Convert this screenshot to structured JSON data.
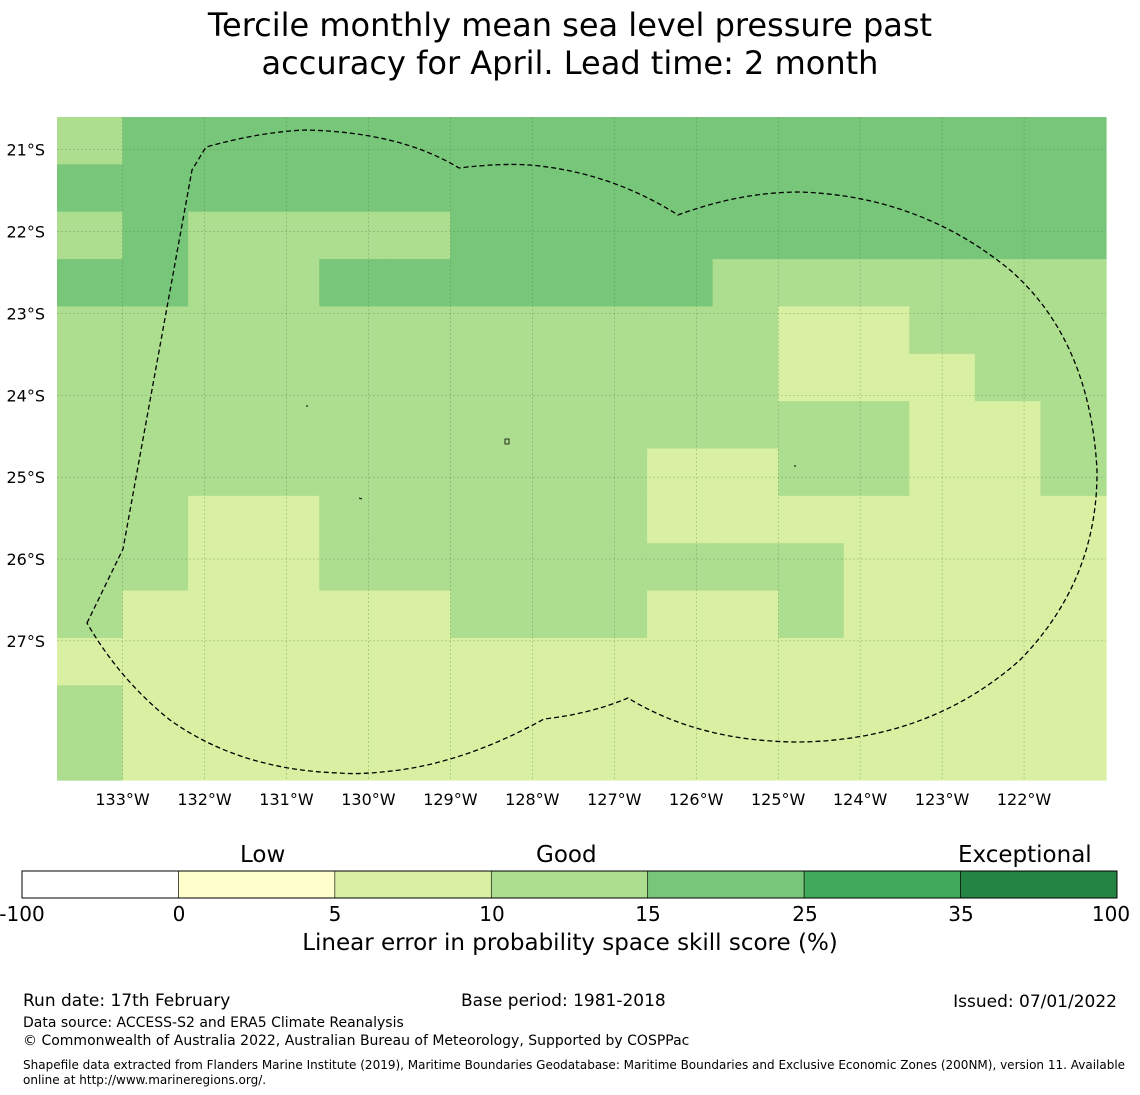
{
  "title": {
    "line1": "Tercile monthly mean sea level pressure past",
    "line2": "accuracy for April. Lead time: 2 month"
  },
  "map": {
    "lat_labels": [
      "21°S",
      "22°S",
      "23°S",
      "24°S",
      "25°S",
      "26°S",
      "27°S"
    ],
    "lat_values": [
      -21,
      -22,
      -23,
      -24,
      -25,
      -26,
      -27
    ],
    "lon_labels": [
      "133°W",
      "132°W",
      "131°W",
      "130°W",
      "129°W",
      "128°W",
      "127°W",
      "126°W",
      "125°W",
      "124°W",
      "123°W",
      "122°W"
    ],
    "lon_values": [
      -133,
      -132,
      -131,
      -130,
      -129,
      -128,
      -127,
      -126,
      -125,
      -124,
      -123,
      -122
    ],
    "lon_range": [
      -133.8,
      -121.0
    ],
    "lat_range": [
      -20.6,
      -28.7
    ],
    "grid_step_deg": 0.833,
    "grid_cols": 16,
    "grid_rows": 14,
    "score_grid": [
      [
        3,
        4,
        4,
        4,
        4,
        4,
        4,
        4,
        4,
        4,
        4,
        4,
        4,
        4,
        4,
        4
      ],
      [
        4,
        4,
        4,
        4,
        4,
        4,
        4,
        4,
        4,
        4,
        4,
        4,
        4,
        4,
        4,
        4
      ],
      [
        3,
        4,
        3,
        3,
        3,
        3,
        4,
        4,
        4,
        4,
        4,
        4,
        4,
        4,
        4,
        4
      ],
      [
        4,
        4,
        3,
        3,
        4,
        4,
        4,
        4,
        4,
        4,
        3,
        3,
        3,
        3,
        3,
        3
      ],
      [
        3,
        3,
        3,
        3,
        3,
        3,
        3,
        3,
        3,
        3,
        3,
        3,
        3,
        3,
        3,
        3
      ],
      [
        3,
        3,
        3,
        3,
        3,
        3,
        3,
        3,
        3,
        3,
        3,
        3,
        3,
        3,
        3,
        3
      ],
      [
        3,
        3,
        3,
        3,
        3,
        3,
        3,
        3,
        3,
        3,
        3,
        3,
        3,
        3,
        3,
        3
      ],
      [
        3,
        3,
        3,
        3,
        3,
        3,
        3,
        3,
        3,
        3,
        3,
        3,
        3,
        3,
        3,
        3
      ],
      [
        3,
        3,
        2,
        2,
        3,
        3,
        3,
        3,
        3,
        3,
        3,
        3,
        3,
        3,
        3,
        3
      ],
      [
        3,
        3,
        2,
        2,
        3,
        3,
        3,
        3,
        3,
        3,
        3,
        3,
        3,
        3,
        3,
        3
      ],
      [
        3,
        2,
        2,
        2,
        2,
        2,
        3,
        3,
        3,
        3,
        3,
        3,
        3,
        3,
        3,
        3
      ],
      [
        2,
        2,
        2,
        2,
        2,
        2,
        3,
        3,
        3,
        3,
        3,
        3,
        3,
        3,
        3,
        3
      ],
      [
        3,
        2,
        2,
        2,
        2,
        2,
        2,
        2,
        2,
        2,
        2,
        2,
        2,
        2,
        2,
        2
      ],
      [
        3,
        2,
        2,
        2,
        2,
        2,
        2,
        2,
        2,
        2,
        2,
        2,
        2,
        2,
        2,
        2
      ]
    ],
    "score_overrides": [
      {
        "row": 0,
        "col": 0,
        "level": 3
      },
      {
        "row": 4,
        "col": 11,
        "level": 2
      },
      {
        "row": 4,
        "col": 12,
        "level": 2
      },
      {
        "row": 5,
        "col": 11,
        "level": 2
      },
      {
        "row": 5,
        "col": 12,
        "level": 2
      },
      {
        "row": 5,
        "col": 13,
        "level": 2
      },
      {
        "row": 6,
        "col": 13,
        "level": 2
      },
      {
        "row": 6,
        "col": 14,
        "level": 2
      },
      {
        "row": 7,
        "col": 9,
        "level": 2
      },
      {
        "row": 7,
        "col": 10,
        "level": 2
      },
      {
        "row": 7,
        "col": 13,
        "level": 2
      },
      {
        "row": 7,
        "col": 14,
        "level": 2
      },
      {
        "row": 8,
        "col": 9,
        "level": 2
      },
      {
        "row": 8,
        "col": 10,
        "level": 2
      },
      {
        "row": 8,
        "col": 15,
        "level": 2
      },
      {
        "row": 8,
        "col": 14,
        "level": 2
      },
      {
        "row": 8,
        "col": 13,
        "level": 2
      },
      {
        "row": 8,
        "col": 12,
        "level": 2
      },
      {
        "row": 8,
        "col": 11,
        "level": 2
      },
      {
        "row": 9,
        "col": 5,
        "level": 3
      },
      {
        "row": 9,
        "col": 6,
        "level": 3
      },
      {
        "row": 9,
        "col": 7,
        "level": 3
      },
      {
        "row": 9,
        "col": 8,
        "level": 3
      },
      {
        "row": 9,
        "col": 9,
        "level": 3
      },
      {
        "row": 9,
        "col": 10,
        "level": 3
      },
      {
        "row": 9,
        "col": 11,
        "level": 3
      },
      {
        "row": 9,
        "col": 12,
        "level": 2
      },
      {
        "row": 9,
        "col": 13,
        "level": 2
      },
      {
        "row": 9,
        "col": 14,
        "level": 2
      },
      {
        "row": 9,
        "col": 15,
        "level": 2
      },
      {
        "row": 10,
        "col": 6,
        "level": 3
      },
      {
        "row": 10,
        "col": 7,
        "level": 3
      },
      {
        "row": 10,
        "col": 8,
        "level": 3
      },
      {
        "row": 10,
        "col": 9,
        "level": 2
      },
      {
        "row": 10,
        "col": 10,
        "level": 2
      },
      {
        "row": 10,
        "col": 11,
        "level": 3
      },
      {
        "row": 10,
        "col": 12,
        "level": 2
      },
      {
        "row": 10,
        "col": 13,
        "level": 2
      },
      {
        "row": 10,
        "col": 14,
        "level": 2
      },
      {
        "row": 10,
        "col": 15,
        "level": 2
      },
      {
        "row": 11,
        "col": 6,
        "level": 2
      },
      {
        "row": 11,
        "col": 7,
        "level": 2
      },
      {
        "row": 11,
        "col": 8,
        "level": 2
      },
      {
        "row": 11,
        "col": 9,
        "level": 2
      },
      {
        "row": 11,
        "col": 10,
        "level": 2
      },
      {
        "row": 11,
        "col": 11,
        "level": 2
      },
      {
        "row": 11,
        "col": 12,
        "level": 2
      },
      {
        "row": 11,
        "col": 13,
        "level": 2
      },
      {
        "row": 11,
        "col": 14,
        "level": 2
      },
      {
        "row": 11,
        "col": 15,
        "level": 2
      }
    ],
    "colors": [
      "#ffffff",
      "#ffffcc",
      "#d9f0a3",
      "#addd8e",
      "#78c679",
      "#41ab5d",
      "#238443"
    ]
  },
  "colorbar": {
    "category_labels": [
      "Low",
      "Good",
      "Exceptional"
    ],
    "ticks": [
      "-100",
      "0",
      "5",
      "10",
      "15",
      "25",
      "35",
      "100"
    ],
    "colors": [
      "#ffffff",
      "#ffffcc",
      "#d9f0a3",
      "#addd8e",
      "#78c679",
      "#41ab5d",
      "#238443"
    ],
    "axis_label": "Linear error in probability space skill score (%)"
  },
  "footer": {
    "run_date": "Run date: 17th February",
    "base_period": "Base period: 1981-2018",
    "issued": "Issued: 07/01/2022",
    "data_source": "Data source: ACCESS-S2 and ERA5 Climate Reanalysis",
    "copyright": "© Commonwealth of Australia 2022, Australian Bureau of Meteorology, Supported by COSPPac",
    "shapefile_line1": "Shapefile data extracted from Flanders Marine Institute (2019), Maritime Boundaries Geodatabase: Maritime Boundaries and Exclusive Economic Zones (200NM), version 11. Available",
    "shapefile_line2": "online at http://www.marineregions.org/."
  }
}
